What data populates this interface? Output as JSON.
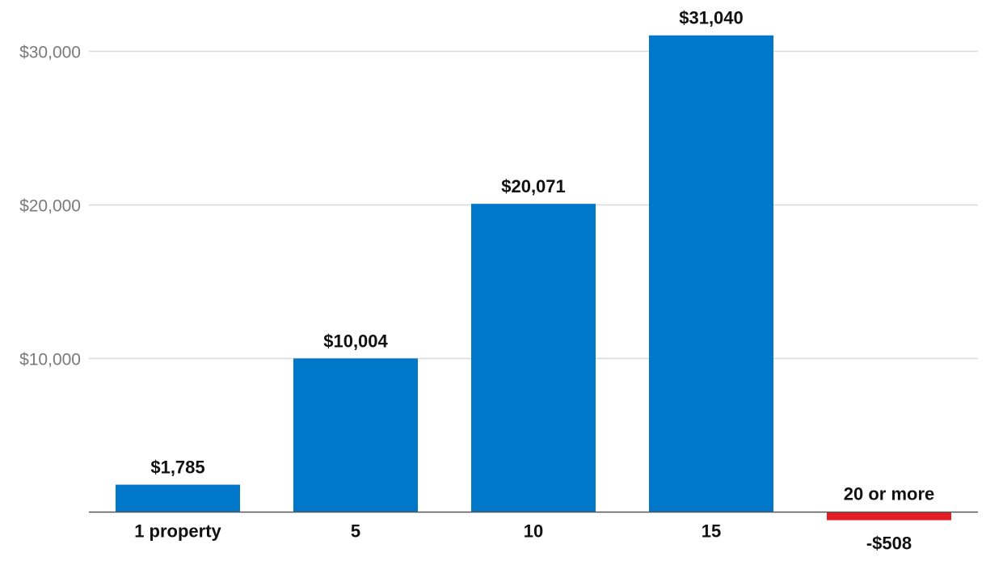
{
  "chart_data": {
    "type": "bar",
    "title": "",
    "xlabel": "",
    "ylabel": "",
    "categories": [
      "1 property",
      "5",
      "10",
      "15",
      "20 or more"
    ],
    "values": [
      1785,
      10004,
      20071,
      31040,
      -508
    ],
    "data_labels": [
      "$1,785",
      "$10,004",
      "$20,071",
      "$31,040",
      "-$508"
    ],
    "ylim": [
      -1000,
      33000
    ],
    "yticks": [
      10000,
      20000,
      30000
    ],
    "ytick_labels": [
      "$10,000",
      "$20,000",
      "$30,000"
    ],
    "grid": true,
    "colors": {
      "positive": "#0077c8",
      "negative": "#e41c23"
    }
  }
}
